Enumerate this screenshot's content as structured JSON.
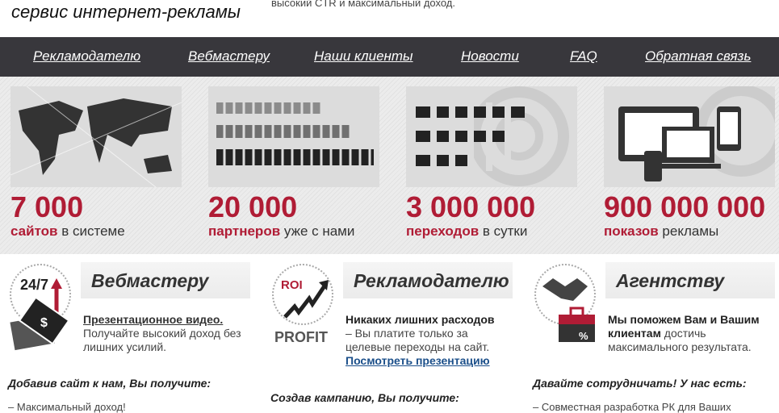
{
  "header": {
    "tagline": "сервис интернет-рекламы",
    "slogan": "высокий CTR и максимальный доход."
  },
  "nav": [
    "Рекламодателю",
    "Вебмастеру",
    "Наши клиенты",
    "Новости",
    "FAQ",
    "Обратная связь"
  ],
  "stats": [
    {
      "number": "7 000",
      "highlight": "сайтов",
      "rest": " в системе",
      "icon": "world-map"
    },
    {
      "number": "20 000",
      "highlight": "партнеров",
      "rest": " уже с нами",
      "icon": "people-crowd"
    },
    {
      "number": "3 000 000",
      "highlight": "переходов",
      "rest": " в сутки",
      "icon": "runners"
    },
    {
      "number": "900 000 000",
      "highlight": "показов",
      "rest": " рекламы",
      "icon": "devices"
    }
  ],
  "colors": {
    "accent": "#b01c35",
    "nav_bg": "#38373c",
    "link": "#1b4f8a"
  },
  "columns": [
    {
      "title": "Вебмастеру",
      "icon": "money-24-7",
      "icon_text": "24/7",
      "link": "Презентационное видео.",
      "body": "Получайте высокий доход без лишних усилий.",
      "subtitle": "Добавив сайт к нам, Вы получите:",
      "item": "– Максимальный доход!"
    },
    {
      "title": "Рекламодателю",
      "icon": "roi-profit",
      "icon_text": "ROI",
      "icon_text2": "PROFIT",
      "bold": "Никаких лишних расходов",
      "body": "– Вы платите только за целевые переходы на сайт.",
      "link": "Посмотреть презентацию",
      "subtitle": "Создав кампанию, Вы получите:"
    },
    {
      "title": "Агентству",
      "icon": "handshake-briefcase",
      "bold": "Мы поможем Вам и Вашим клиентам",
      "body": " достичь максимального результата.",
      "subtitle": "Давайте сотрудничать! У нас есть:",
      "item": "– Совместная разработка РК для Ваших"
    }
  ]
}
